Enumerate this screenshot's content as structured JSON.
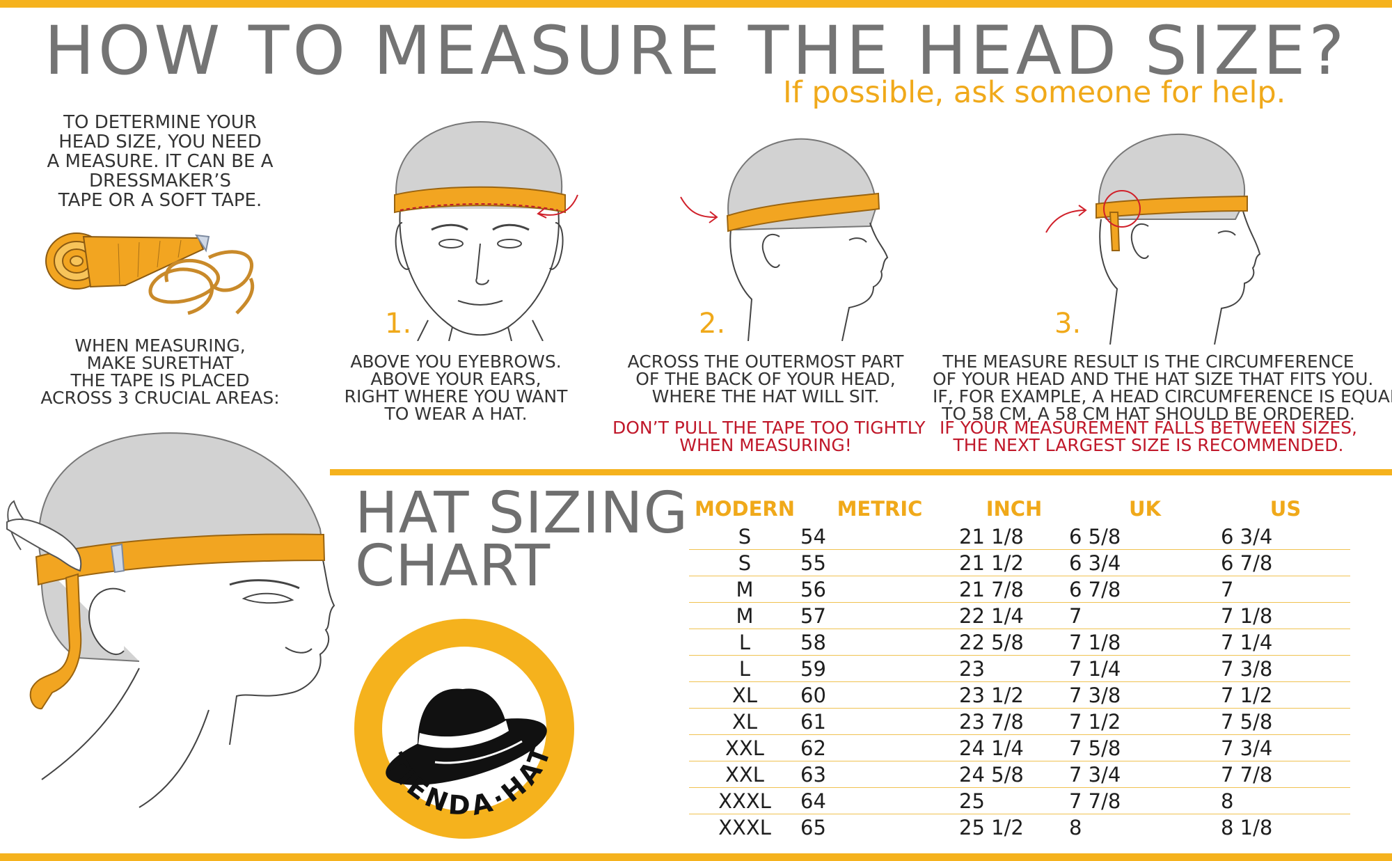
{
  "header": {
    "title": "HOW TO MEASURE THE HEAD SIZE?",
    "subtitle": "If possible, ask someone for help."
  },
  "intro": {
    "lines": [
      "TO DETERMINE YOUR",
      "HEAD SIZE, YOU NEED",
      "A MEASURE. IT CAN BE A",
      "DRESSMAKER’S",
      "TAPE OR A SOFT TAPE."
    ],
    "measuring_lines": [
      "WHEN MEASURING,",
      "MAKE SURETHAT",
      "THE TAPE IS PLACED",
      "ACROSS 3 CRUCIAL AREAS:"
    ]
  },
  "steps": [
    {
      "number": "1.",
      "lines": [
        "ABOVE YOU EYEBROWS.",
        "ABOVE YOUR EARS,",
        "RIGHT WHERE YOU WANT",
        "TO WEAR A HAT."
      ],
      "warning_lines": []
    },
    {
      "number": "2.",
      "lines": [
        "ACROSS THE OUTERMOST PART",
        "OF THE BACK OF YOUR HEAD,",
        "WHERE THE HAT WILL SIT."
      ],
      "warning_lines": [
        "DON’T PULL THE TAPE TOO TIGHTLY",
        "WHEN MEASURING!"
      ]
    },
    {
      "number": "3.",
      "lines": [
        "THE MEASURE RESULT IS THE CIRCUMFERENCE",
        "OF YOUR HEAD AND THE  HAT SIZE THAT FITS YOU.",
        "IF, FOR EXAMPLE, A HEAD CIRCUMFERENCE IS EQUAL",
        "TO 58 CM, A 58 CM HAT SHOULD BE ORDERED."
      ],
      "warning_lines": [
        "IF YOUR MEASUREMENT FALLS BETWEEN SIZES,",
        "THE NEXT LARGEST SIZE IS RECOMMENDED."
      ]
    }
  ],
  "chart": {
    "title_line1": "HAT SIZING",
    "title_line2": "CHART",
    "headers": [
      "MODERN",
      "METRIC",
      "INCH",
      "UK",
      "US"
    ],
    "rows": [
      [
        "S",
        "54",
        "21 1/8",
        "6 5/8",
        "6 3/4"
      ],
      [
        "S",
        "55",
        "21 1/2",
        "6 3/4",
        "6 7/8"
      ],
      [
        "M",
        "56",
        "21 7/8",
        "6 7/8",
        "7"
      ],
      [
        "M",
        "57",
        "22 1/4",
        "7",
        "7 1/8"
      ],
      [
        "L",
        "58",
        "22 5/8",
        "7 1/8",
        "7 1/4"
      ],
      [
        "L",
        "59",
        "23",
        "7 1/4",
        "7 3/8"
      ],
      [
        "XL",
        "60",
        "23 1/2",
        "7 3/8",
        "7 1/2"
      ],
      [
        "XL",
        "61",
        "23 7/8",
        "7 1/2",
        "7 5/8"
      ],
      [
        "XXL",
        "62",
        "24 1/4",
        "7 5/8",
        "7 3/4"
      ],
      [
        "XXL",
        "63",
        "24 5/8",
        "7 3/4",
        "7 7/8"
      ],
      [
        "XXXL",
        "64",
        "25",
        "7 7/8",
        "8"
      ],
      [
        "XXXL",
        "65",
        "25 1/2",
        "8",
        "8 1/8"
      ]
    ]
  },
  "logo": {
    "text": "TIENDA·HAT"
  },
  "colors": {
    "accent": "#f5b21d",
    "title_gray": "#747474",
    "warning": "#c0182a",
    "tape": "#f2a521",
    "hair": "#d2d2d2"
  }
}
